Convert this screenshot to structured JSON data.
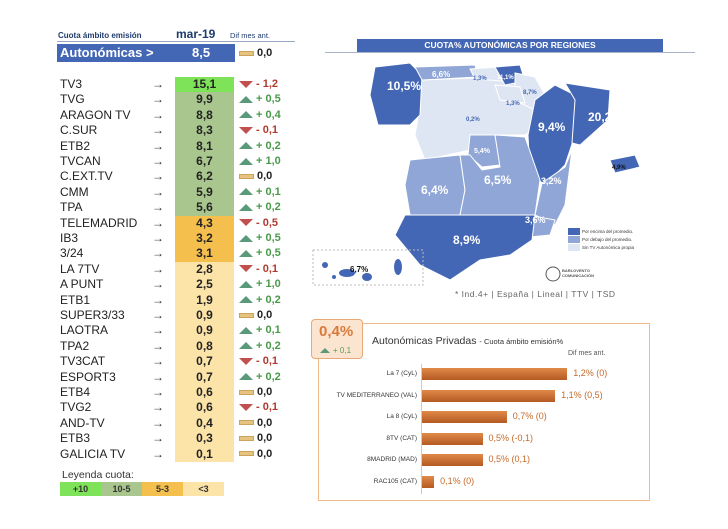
{
  "table": {
    "header_label": "Cuota ámbito emisión",
    "month": "mar-19",
    "diff_label": "Dif mes ant.",
    "summary": {
      "label": "Autonómicas >",
      "value": "8,5",
      "diff": "0,0"
    },
    "rows": [
      {
        "name": "TV3",
        "value": "15,1",
        "diff": "- 1,2",
        "trend": "down",
        "band": "+10"
      },
      {
        "name": "TVG",
        "value": "9,9",
        "diff": "+ 0,5",
        "trend": "up",
        "band": "10-5"
      },
      {
        "name": "ARAGON TV",
        "value": "8,8",
        "diff": "+ 0,4",
        "trend": "up",
        "band": "10-5"
      },
      {
        "name": "C.SUR",
        "value": "8,3",
        "diff": "- 0,1",
        "trend": "down",
        "band": "10-5"
      },
      {
        "name": "ETB2",
        "value": "8,1",
        "diff": "+ 0,2",
        "trend": "up",
        "band": "10-5"
      },
      {
        "name": "TVCAN",
        "value": "6,7",
        "diff": "+ 1,0",
        "trend": "up",
        "band": "10-5"
      },
      {
        "name": "C.EXT.TV",
        "value": "6,2",
        "diff": "0,0",
        "trend": "flat",
        "band": "10-5"
      },
      {
        "name": "CMM",
        "value": "5,9",
        "diff": "+ 0,1",
        "trend": "up",
        "band": "10-5"
      },
      {
        "name": "TPA",
        "value": "5,6",
        "diff": "+ 0,2",
        "trend": "up",
        "band": "10-5"
      },
      {
        "name": "TELEMADRID",
        "value": "4,3",
        "diff": "- 0,5",
        "trend": "down",
        "band": "5-3"
      },
      {
        "name": "IB3",
        "value": "3,2",
        "diff": "+ 0,5",
        "trend": "up",
        "band": "5-3"
      },
      {
        "name": "3/24",
        "value": "3,1",
        "diff": "+ 0,5",
        "trend": "up",
        "band": "5-3"
      },
      {
        "name": "LA 7TV",
        "value": "2,8",
        "diff": "- 0,1",
        "trend": "down",
        "band": "<3"
      },
      {
        "name": "A PUNT",
        "value": "2,5",
        "diff": "+ 1,0",
        "trend": "up",
        "band": "<3"
      },
      {
        "name": "ETB1",
        "value": "1,9",
        "diff": "+ 0,2",
        "trend": "up",
        "band": "<3"
      },
      {
        "name": "SUPER3/33",
        "value": "0,9",
        "diff": "0,0",
        "trend": "flat",
        "band": "<3"
      },
      {
        "name": "LAOTRA",
        "value": "0,9",
        "diff": "+ 0,1",
        "trend": "up",
        "band": "<3"
      },
      {
        "name": "TPA2",
        "value": "0,8",
        "diff": "+ 0,2",
        "trend": "up",
        "band": "<3"
      },
      {
        "name": "TV3CAT",
        "value": "0,7",
        "diff": "- 0,1",
        "trend": "down",
        "band": "<3"
      },
      {
        "name": "ESPORT3",
        "value": "0,7",
        "diff": "+ 0,2",
        "trend": "up",
        "band": "<3"
      },
      {
        "name": "ETB4",
        "value": "0,6",
        "diff": "0,0",
        "trend": "flat",
        "band": "<3"
      },
      {
        "name": "TVG2",
        "value": "0,6",
        "diff": "- 0,1",
        "trend": "down",
        "band": "<3"
      },
      {
        "name": "AND-TV",
        "value": "0,4",
        "diff": "0,0",
        "trend": "flat",
        "band": "<3"
      },
      {
        "name": "ETB3",
        "value": "0,3",
        "diff": "0,0",
        "trend": "flat",
        "band": "<3"
      },
      {
        "name": "GALICIA TV",
        "value": "0,1",
        "diff": "0,0",
        "trend": "flat",
        "band": "<3"
      }
    ],
    "legend_title": "Leyenda cuota:",
    "legend": [
      {
        "label": "+10",
        "color": "#7fe35a"
      },
      {
        "label": "10-5",
        "color": "#a8c68e"
      },
      {
        "label": "5-3",
        "color": "#f4bf4c"
      },
      {
        "label": "<3",
        "color": "#fce4a8"
      }
    ],
    "colors": {
      "up": "#4a9a4a",
      "down": "#b03a2e"
    }
  },
  "map": {
    "title": "CUOTA% AUTONÓMICAS POR REGIONES",
    "regions": {
      "galicia": "10,5%",
      "asturias": "6,6%",
      "cantabria": "1,3%",
      "pais_vasco": "11,1%",
      "navarra": "8,7%",
      "rioja": "1,3%",
      "castilla_leon": "0,2%",
      "aragon": "9,4%",
      "cataluna": "20,2%",
      "madrid": "5,4%",
      "extremadura": "6,4%",
      "castilla_la_mancha": "6,5%",
      "valencia": "3,2%",
      "murcia": "3,6%",
      "andalucia": "8,9%",
      "baleares": "4,9%",
      "canarias": "6,7%"
    },
    "legend": [
      "Por encima del promedio.",
      "Por debajo del promedio.",
      "Sin TV Autonómica propia"
    ],
    "colors": {
      "above": "#4467b5",
      "below": "#8fa6d6",
      "none": "#dfe6f3"
    },
    "footnote": "* Ind.4+ | España | Lineal | TTV | TSD",
    "logo": "BARLOVENTO COMUNICACIÓN"
  },
  "private": {
    "total": "0,4%",
    "total_diff": "+ 0,1",
    "title": "Autonómicas Privadas",
    "subtitle": "- Cuota ámbito emisión%",
    "diff_label": "Dif mes ant.",
    "chart_data": {
      "type": "bar",
      "orientation": "horizontal",
      "categories": [
        "La 7 (CyL)",
        "TV MEDITERRANEO (VAL)",
        "La 8 (CyL)",
        "8TV (CAT)",
        "8MADRID (MAD)",
        "RAC105 (CAT)"
      ],
      "values": [
        1.2,
        1.1,
        0.7,
        0.5,
        0.5,
        0.1
      ],
      "labels": [
        "1,2% (0)",
        "1,1% (0,5)",
        "0,7% (0)",
        "0,5% (-0,1)",
        "0,5% (0,1)",
        "0,1% (0)"
      ],
      "color": "#c8692e"
    }
  }
}
